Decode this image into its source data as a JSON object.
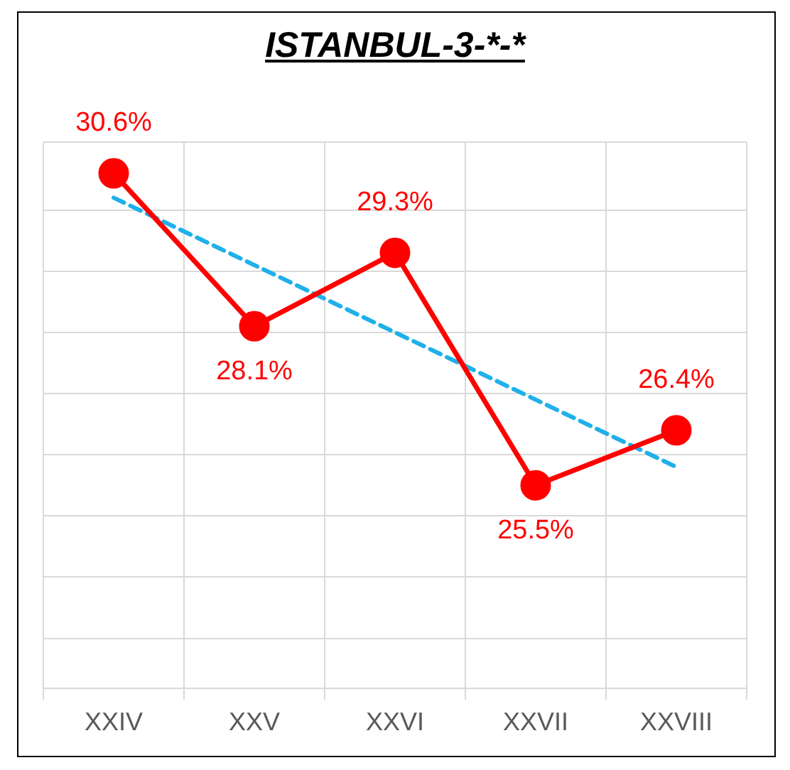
{
  "chart_data": {
    "type": "line",
    "title": "ISTANBUL-3-*-*",
    "categories": [
      "XXIV",
      "XXV",
      "XXVI",
      "XXVII",
      "XXVIII"
    ],
    "series": [
      {
        "color": "#ff0000",
        "values": [
          30.6,
          28.1,
          29.3,
          25.5,
          26.4
        ],
        "marker": "circle",
        "line_style": "solid",
        "value_labels": [
          "30.6%",
          "28.1%",
          "29.3%",
          "25.5%",
          "26.4%"
        ]
      },
      {
        "type": "line",
        "color": "#1fb0ea",
        "x": [
          "XXIV",
          "XXVIII"
        ],
        "values": [
          30.2,
          25.8
        ],
        "marker": "none",
        "line_style": "dashed"
      }
    ],
    "grid": true,
    "legend": false
  }
}
